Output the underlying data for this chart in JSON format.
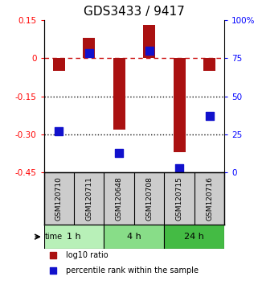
{
  "title": "GDS3433 / 9417",
  "samples": [
    "GSM120710",
    "GSM120711",
    "GSM120648",
    "GSM120708",
    "GSM120715",
    "GSM120716"
  ],
  "log10_ratio": [
    -0.05,
    0.08,
    -0.28,
    0.13,
    -0.37,
    -0.05
  ],
  "percentile_rank": [
    27,
    78,
    13,
    80,
    3,
    37
  ],
  "ylim_left": [
    -0.45,
    0.15
  ],
  "ylim_right": [
    0,
    100
  ],
  "yticks_left": [
    0.15,
    0,
    -0.15,
    -0.3,
    -0.45
  ],
  "ytick_labels_left": [
    "0.15",
    "0",
    "-0.15",
    "-0.30",
    "-0.45"
  ],
  "yticks_right": [
    100,
    75,
    50,
    25,
    0
  ],
  "ytick_labels_right": [
    "100%",
    "75",
    "50",
    "25",
    "0"
  ],
  "hlines": [
    -0.15,
    -0.3
  ],
  "bar_color": "#aa1111",
  "square_color": "#1111cc",
  "dashed_line_color": "#cc1111",
  "dotted_line_color": "#111111",
  "time_groups": [
    {
      "label": "1 h",
      "samples": [
        0,
        1
      ],
      "color": "#b8f0b8"
    },
    {
      "label": "4 h",
      "samples": [
        2,
        3
      ],
      "color": "#88dd88"
    },
    {
      "label": "24 h",
      "samples": [
        4,
        5
      ],
      "color": "#44bb44"
    }
  ],
  "bar_width": 0.4,
  "square_size": 60,
  "title_fontsize": 11,
  "tick_fontsize": 7.5,
  "label_fontsize": 8
}
